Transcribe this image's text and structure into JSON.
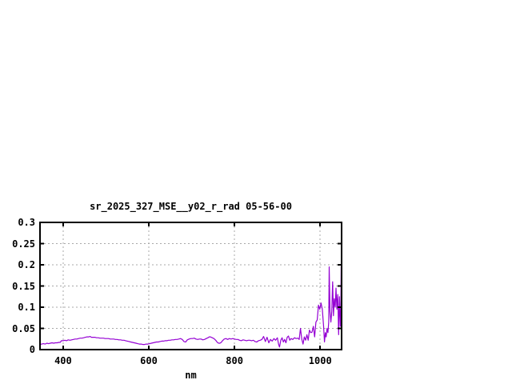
{
  "page": {
    "background": "#ffffff"
  },
  "chart_data": {
    "type": "line",
    "title": "sr_2025_327_MSE__y02_r_rad 05-56-00",
    "xlabel": "nm",
    "ylabel": "",
    "xlim": [
      346,
      1050
    ],
    "ylim": [
      0,
      0.3
    ],
    "xticks": [
      400,
      600,
      800,
      1000
    ],
    "xtick_labels": [
      "400",
      "600",
      "800",
      "1000"
    ],
    "yticks": [
      0,
      0.05,
      0.1,
      0.15,
      0.2,
      0.25,
      0.3
    ],
    "ytick_labels": [
      "0",
      "0.05",
      "0.1",
      "0.15",
      "0.2",
      "0.25",
      "0.3"
    ],
    "grid": true,
    "legend": "none",
    "colors": {
      "line": "#9400d3",
      "grid": "#a8a8a8",
      "border": "#000000",
      "text": "#000000"
    },
    "series": [
      {
        "name": "sr_2025_327_MSE__y02_r_rad 05-56-00",
        "points": [
          [
            346,
            0.012
          ],
          [
            350,
            0.013
          ],
          [
            354,
            0.014
          ],
          [
            358,
            0.013
          ],
          [
            362,
            0.015
          ],
          [
            366,
            0.014
          ],
          [
            370,
            0.015
          ],
          [
            374,
            0.016
          ],
          [
            378,
            0.015
          ],
          [
            382,
            0.016
          ],
          [
            386,
            0.016
          ],
          [
            390,
            0.017
          ],
          [
            393,
            0.017
          ],
          [
            396,
            0.021
          ],
          [
            400,
            0.021
          ],
          [
            404,
            0.022
          ],
          [
            408,
            0.021
          ],
          [
            412,
            0.023
          ],
          [
            416,
            0.022
          ],
          [
            420,
            0.023
          ],
          [
            424,
            0.024
          ],
          [
            428,
            0.025
          ],
          [
            432,
            0.025
          ],
          [
            436,
            0.026
          ],
          [
            440,
            0.027
          ],
          [
            444,
            0.027
          ],
          [
            448,
            0.028
          ],
          [
            452,
            0.029
          ],
          [
            456,
            0.03
          ],
          [
            460,
            0.03
          ],
          [
            463,
            0.031
          ],
          [
            466,
            0.029
          ],
          [
            470,
            0.029
          ],
          [
            474,
            0.029
          ],
          [
            478,
            0.028
          ],
          [
            482,
            0.028
          ],
          [
            486,
            0.027
          ],
          [
            490,
            0.027
          ],
          [
            494,
            0.027
          ],
          [
            498,
            0.026
          ],
          [
            502,
            0.026
          ],
          [
            506,
            0.026
          ],
          [
            510,
            0.025
          ],
          [
            514,
            0.025
          ],
          [
            518,
            0.025
          ],
          [
            522,
            0.024
          ],
          [
            526,
            0.024
          ],
          [
            530,
            0.023
          ],
          [
            534,
            0.023
          ],
          [
            538,
            0.022
          ],
          [
            542,
            0.022
          ],
          [
            546,
            0.021
          ],
          [
            550,
            0.02
          ],
          [
            554,
            0.019
          ],
          [
            558,
            0.018
          ],
          [
            562,
            0.017
          ],
          [
            566,
            0.016
          ],
          [
            570,
            0.015
          ],
          [
            574,
            0.014
          ],
          [
            578,
            0.013
          ],
          [
            582,
            0.013
          ],
          [
            586,
            0.012
          ],
          [
            590,
            0.012
          ],
          [
            594,
            0.013
          ],
          [
            598,
            0.013
          ],
          [
            602,
            0.014
          ],
          [
            606,
            0.015
          ],
          [
            610,
            0.016
          ],
          [
            614,
            0.017
          ],
          [
            618,
            0.018
          ],
          [
            622,
            0.018
          ],
          [
            626,
            0.019
          ],
          [
            630,
            0.02
          ],
          [
            634,
            0.02
          ],
          [
            638,
            0.021
          ],
          [
            642,
            0.021
          ],
          [
            646,
            0.022
          ],
          [
            650,
            0.022
          ],
          [
            654,
            0.023
          ],
          [
            658,
            0.023
          ],
          [
            662,
            0.024
          ],
          [
            666,
            0.024
          ],
          [
            670,
            0.025
          ],
          [
            674,
            0.026
          ],
          [
            678,
            0.024
          ],
          [
            682,
            0.019
          ],
          [
            686,
            0.018
          ],
          [
            690,
            0.023
          ],
          [
            694,
            0.025
          ],
          [
            698,
            0.026
          ],
          [
            702,
            0.026
          ],
          [
            706,
            0.027
          ],
          [
            710,
            0.025
          ],
          [
            714,
            0.024
          ],
          [
            718,
            0.025
          ],
          [
            722,
            0.025
          ],
          [
            726,
            0.023
          ],
          [
            730,
            0.024
          ],
          [
            734,
            0.026
          ],
          [
            738,
            0.028
          ],
          [
            741,
            0.03
          ],
          [
            744,
            0.03
          ],
          [
            748,
            0.028
          ],
          [
            752,
            0.026
          ],
          [
            756,
            0.022
          ],
          [
            760,
            0.017
          ],
          [
            763,
            0.015
          ],
          [
            766,
            0.015
          ],
          [
            769,
            0.017
          ],
          [
            772,
            0.021
          ],
          [
            776,
            0.025
          ],
          [
            780,
            0.026
          ],
          [
            784,
            0.024
          ],
          [
            788,
            0.026
          ],
          [
            792,
            0.025
          ],
          [
            796,
            0.026
          ],
          [
            800,
            0.025
          ],
          [
            804,
            0.024
          ],
          [
            808,
            0.024
          ],
          [
            812,
            0.022
          ],
          [
            816,
            0.021
          ],
          [
            820,
            0.023
          ],
          [
            824,
            0.022
          ],
          [
            828,
            0.021
          ],
          [
            832,
            0.022
          ],
          [
            836,
            0.022
          ],
          [
            840,
            0.021
          ],
          [
            844,
            0.022
          ],
          [
            848,
            0.019
          ],
          [
            852,
            0.018
          ],
          [
            856,
            0.021
          ],
          [
            860,
            0.022
          ],
          [
            864,
            0.024
          ],
          [
            868,
            0.031
          ],
          [
            872,
            0.019
          ],
          [
            876,
            0.029
          ],
          [
            880,
            0.016
          ],
          [
            884,
            0.024
          ],
          [
            888,
            0.02
          ],
          [
            892,
            0.026
          ],
          [
            896,
            0.022
          ],
          [
            900,
            0.028
          ],
          [
            903,
            0.012
          ],
          [
            905,
            0.006
          ],
          [
            908,
            0.022
          ],
          [
            911,
            0.028
          ],
          [
            914,
            0.018
          ],
          [
            917,
            0.024
          ],
          [
            920,
            0.016
          ],
          [
            923,
            0.029
          ],
          [
            926,
            0.032
          ],
          [
            929,
            0.022
          ],
          [
            932,
            0.026
          ],
          [
            936,
            0.024
          ],
          [
            940,
            0.028
          ],
          [
            944,
            0.026
          ],
          [
            948,
            0.027
          ],
          [
            951,
            0.024
          ],
          [
            954,
            0.05
          ],
          [
            957,
            0.025
          ],
          [
            960,
            0.013
          ],
          [
            963,
            0.03
          ],
          [
            966,
            0.022
          ],
          [
            969,
            0.035
          ],
          [
            972,
            0.022
          ],
          [
            975,
            0.046
          ],
          [
            978,
            0.04
          ],
          [
            981,
            0.041
          ],
          [
            984,
            0.055
          ],
          [
            987,
            0.03
          ],
          [
            990,
            0.065
          ],
          [
            993,
            0.07
          ],
          [
            996,
            0.105
          ],
          [
            999,
            0.095
          ],
          [
            1002,
            0.11
          ],
          [
            1005,
            0.095
          ],
          [
            1008,
            0.055
          ],
          [
            1010,
            0.018
          ],
          [
            1012,
            0.04
          ],
          [
            1014,
            0.03
          ],
          [
            1016,
            0.05
          ],
          [
            1018,
            0.04
          ],
          [
            1020,
            0.065
          ],
          [
            1021,
            0.195
          ],
          [
            1023,
            0.09
          ],
          [
            1025,
            0.065
          ],
          [
            1027,
            0.09
          ],
          [
            1029,
            0.16
          ],
          [
            1031,
            0.08
          ],
          [
            1033,
            0.12
          ],
          [
            1035,
            0.1
          ],
          [
            1037,
            0.145
          ],
          [
            1039,
            0.095
          ],
          [
            1041,
            0.13
          ],
          [
            1043,
            0.035
          ],
          [
            1045,
            0.125
          ],
          [
            1047,
            0.055
          ],
          [
            1048,
            0.06
          ],
          [
            1049,
            0.197
          ],
          [
            1050,
            0.09
          ]
        ]
      }
    ]
  }
}
